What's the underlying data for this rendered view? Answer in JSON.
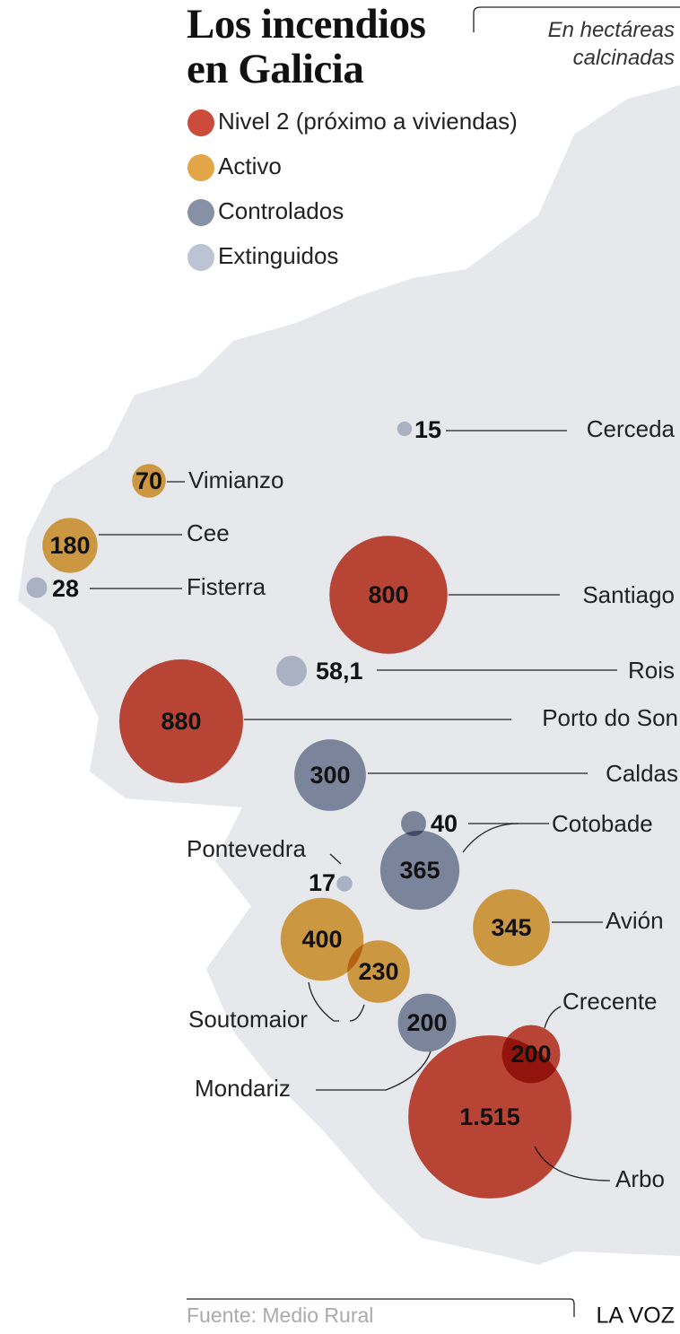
{
  "header": {
    "title": "Los incendios en Galicia",
    "subtitle": "En hectáreas calcinadas"
  },
  "legend": [
    {
      "name": "Nivel 2 (próximo a viviendas)",
      "color": "#cc4b3a"
    },
    {
      "name": "Activo",
      "color": "#e3a646"
    },
    {
      "name": "Controlados",
      "color": "#8791a6"
    },
    {
      "name": "Extinguidos",
      "color": "#bcc3d3"
    }
  ],
  "places": [
    {
      "name": "Cerceda",
      "fires": [
        {
          "value": 15,
          "status": "Extinguidos"
        }
      ]
    },
    {
      "name": "Vimianzo",
      "fires": [
        {
          "value": 70,
          "status": "Activo"
        }
      ]
    },
    {
      "name": "Cee",
      "fires": [
        {
          "value": 180,
          "status": "Activo"
        }
      ]
    },
    {
      "name": "Fisterra",
      "fires": [
        {
          "value": 28,
          "status": "Extinguidos"
        }
      ]
    },
    {
      "name": "Santiago",
      "fires": [
        {
          "value": 800,
          "status": "Nivel 2 (próximo a viviendas)"
        }
      ]
    },
    {
      "name": "Rois",
      "fires": [
        {
          "value": 58.1,
          "label": "58,1",
          "status": "Extinguidos"
        }
      ]
    },
    {
      "name": "Porto do Son",
      "fires": [
        {
          "value": 880,
          "status": "Nivel 2 (próximo a viviendas)"
        }
      ]
    },
    {
      "name": "Caldas",
      "fires": [
        {
          "value": 300,
          "status": "Controlados"
        }
      ]
    },
    {
      "name": "Cotobade",
      "fires": [
        {
          "value": 40,
          "status": "Controlados"
        },
        {
          "value": 365,
          "status": "Controlados"
        }
      ]
    },
    {
      "name": "Pontevedra",
      "fires": [
        {
          "value": 17,
          "status": "Extinguidos"
        }
      ]
    },
    {
      "name": "Avión",
      "fires": [
        {
          "value": 345,
          "status": "Activo"
        }
      ]
    },
    {
      "name": "Soutomaior",
      "fires": [
        {
          "value": 400,
          "status": "Activo"
        },
        {
          "value": 230,
          "status": "Activo"
        }
      ]
    },
    {
      "name": "Mondariz",
      "fires": [
        {
          "value": 200,
          "status": "Controlados"
        }
      ]
    },
    {
      "name": "Crecente",
      "fires": [
        {
          "value": 200,
          "status": "Nivel 2 (próximo a viviendas)"
        }
      ]
    },
    {
      "name": "Arbo",
      "fires": [
        {
          "value": 1515,
          "label": "1.515",
          "status": "Nivel 2 (próximo a viviendas)"
        }
      ]
    }
  ],
  "footer": {
    "source": "Fuente: Medio Rural",
    "brand": "LA VOZ"
  }
}
